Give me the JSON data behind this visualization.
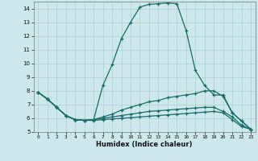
{
  "background_color": "#cce8ea",
  "grid_color": "#aecfcf",
  "line_color": "#1a6b6b",
  "xlabel": "Humidex (Indice chaleur)",
  "xlim": [
    -0.5,
    23.5
  ],
  "ylim": [
    5,
    14.5
  ],
  "yticks": [
    5,
    6,
    7,
    8,
    9,
    10,
    11,
    12,
    13,
    14
  ],
  "xticks": [
    0,
    1,
    2,
    3,
    4,
    5,
    6,
    7,
    8,
    9,
    10,
    11,
    12,
    13,
    14,
    15,
    16,
    17,
    18,
    19,
    20,
    21,
    22,
    23
  ],
  "line1_x": [
    0,
    1,
    2,
    3,
    4,
    5,
    6,
    7,
    8,
    9,
    10,
    11,
    12,
    13,
    14,
    15,
    16,
    17,
    18,
    19,
    20,
    21,
    22,
    23
  ],
  "line1_y": [
    7.9,
    7.4,
    6.8,
    6.2,
    5.9,
    5.85,
    5.9,
    8.4,
    9.9,
    11.8,
    13.0,
    14.1,
    14.3,
    14.35,
    14.4,
    14.35,
    12.4,
    9.5,
    8.4,
    7.7,
    7.7,
    6.4,
    5.8,
    5.2
  ],
  "line2_x": [
    0,
    1,
    2,
    3,
    4,
    5,
    6,
    7,
    8,
    9,
    10,
    11,
    12,
    13,
    14,
    15,
    16,
    17,
    18,
    19,
    20,
    21,
    22,
    23
  ],
  "line2_y": [
    7.9,
    7.4,
    6.8,
    6.2,
    5.9,
    5.85,
    5.9,
    6.1,
    6.3,
    6.6,
    6.8,
    7.0,
    7.2,
    7.3,
    7.5,
    7.6,
    7.7,
    7.8,
    8.0,
    8.0,
    7.6,
    6.4,
    5.8,
    5.2
  ],
  "line3_x": [
    0,
    1,
    2,
    3,
    4,
    5,
    6,
    7,
    8,
    9,
    10,
    11,
    12,
    13,
    14,
    15,
    16,
    17,
    18,
    19,
    20,
    21,
    22,
    23
  ],
  "line3_y": [
    7.9,
    7.4,
    6.8,
    6.2,
    5.9,
    5.85,
    5.9,
    6.0,
    6.1,
    6.2,
    6.3,
    6.4,
    6.5,
    6.55,
    6.6,
    6.65,
    6.7,
    6.75,
    6.8,
    6.8,
    6.5,
    6.1,
    5.5,
    5.2
  ],
  "line4_x": [
    0,
    1,
    2,
    3,
    4,
    5,
    6,
    7,
    8,
    9,
    10,
    11,
    12,
    13,
    14,
    15,
    16,
    17,
    18,
    19,
    20,
    21,
    22,
    23
  ],
  "line4_y": [
    7.9,
    7.4,
    6.8,
    6.2,
    5.9,
    5.85,
    5.85,
    5.9,
    5.95,
    6.0,
    6.05,
    6.1,
    6.15,
    6.2,
    6.25,
    6.3,
    6.35,
    6.4,
    6.45,
    6.5,
    6.4,
    5.9,
    5.4,
    5.2
  ]
}
